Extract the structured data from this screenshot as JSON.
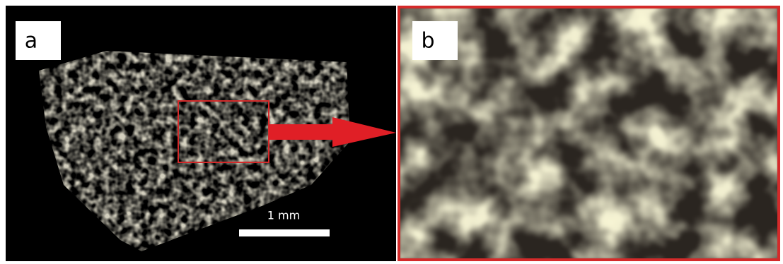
{
  "panels": [
    {
      "label": "a",
      "scale_bar": "1 mm"
    },
    {
      "label": "b"
    }
  ]
}
